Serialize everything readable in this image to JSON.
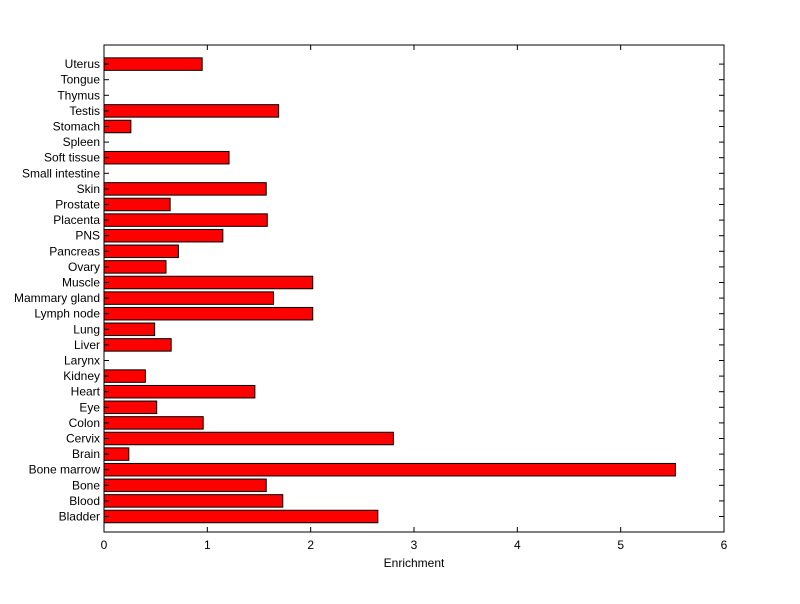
{
  "chart_data": {
    "type": "bar",
    "orientation": "horizontal",
    "title": "",
    "xlabel": "Enrichment",
    "ylabel": "",
    "xlim": [
      0,
      6
    ],
    "xticks": [
      0,
      1,
      2,
      3,
      4,
      5,
      6
    ],
    "grid": false,
    "bar_color": "#ff0000",
    "bar_edge_color": "#000000",
    "categories": [
      "Bladder",
      "Blood",
      "Bone",
      "Bone marrow",
      "Brain",
      "Cervix",
      "Colon",
      "Eye",
      "Heart",
      "Kidney",
      "Larynx",
      "Liver",
      "Lung",
      "Lymph node",
      "Mammary gland",
      "Muscle",
      "Ovary",
      "Pancreas",
      "PNS",
      "Placenta",
      "Prostate",
      "Skin",
      "Small intestine",
      "Soft tissue",
      "Spleen",
      "Stomach",
      "Testis",
      "Thymus",
      "Tongue",
      "Uterus"
    ],
    "values": [
      2.65,
      1.73,
      1.57,
      5.53,
      0.24,
      2.8,
      0.96,
      0.51,
      1.46,
      0.4,
      0,
      0.65,
      0.49,
      2.02,
      1.64,
      2.02,
      0.6,
      0.72,
      1.15,
      1.58,
      0.64,
      1.57,
      0,
      1.21,
      0,
      0.26,
      1.69,
      0,
      0,
      0.95
    ]
  }
}
